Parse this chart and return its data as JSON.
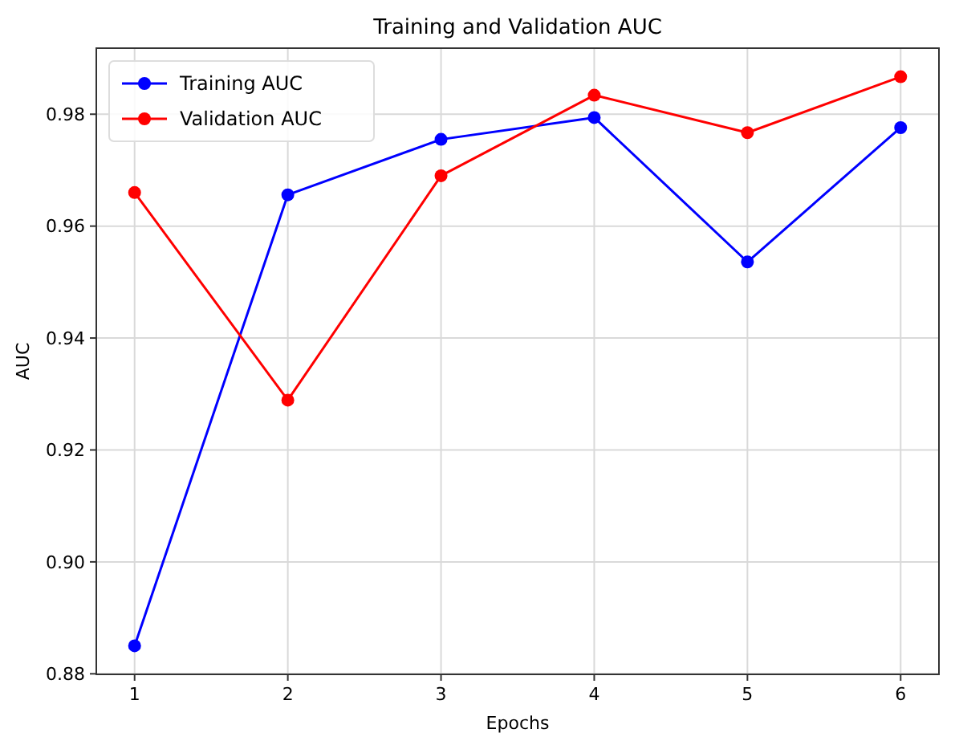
{
  "chart_data": {
    "type": "line",
    "title": "Training and Validation AUC",
    "xlabel": "Epochs",
    "ylabel": "AUC",
    "x": [
      1,
      2,
      3,
      4,
      5,
      6
    ],
    "series": [
      {
        "name": "Training AUC",
        "color": "#0000ff",
        "values": [
          0.885,
          0.9656,
          0.9755,
          0.9794,
          0.9536,
          0.9776
        ]
      },
      {
        "name": "Validation AUC",
        "color": "#ff0000",
        "values": [
          0.966,
          0.9289,
          0.969,
          0.9834,
          0.9767,
          0.9867
        ]
      }
    ],
    "xlim": [
      0.75,
      6.25
    ],
    "xticks": [
      1,
      2,
      3,
      4,
      5,
      6
    ],
    "ylim": [
      0.8799,
      0.9918
    ],
    "yticks": [
      {
        "value": 0.88,
        "label": "0.88"
      },
      {
        "value": 0.9,
        "label": "0.90"
      },
      {
        "value": 0.92,
        "label": "0.92"
      },
      {
        "value": 0.94,
        "label": "0.94"
      },
      {
        "value": 0.96,
        "label": "0.96"
      },
      {
        "value": 0.98,
        "label": "0.98"
      }
    ],
    "grid": true,
    "legend": "top left",
    "marker": "circle",
    "line_style": "solid"
  }
}
